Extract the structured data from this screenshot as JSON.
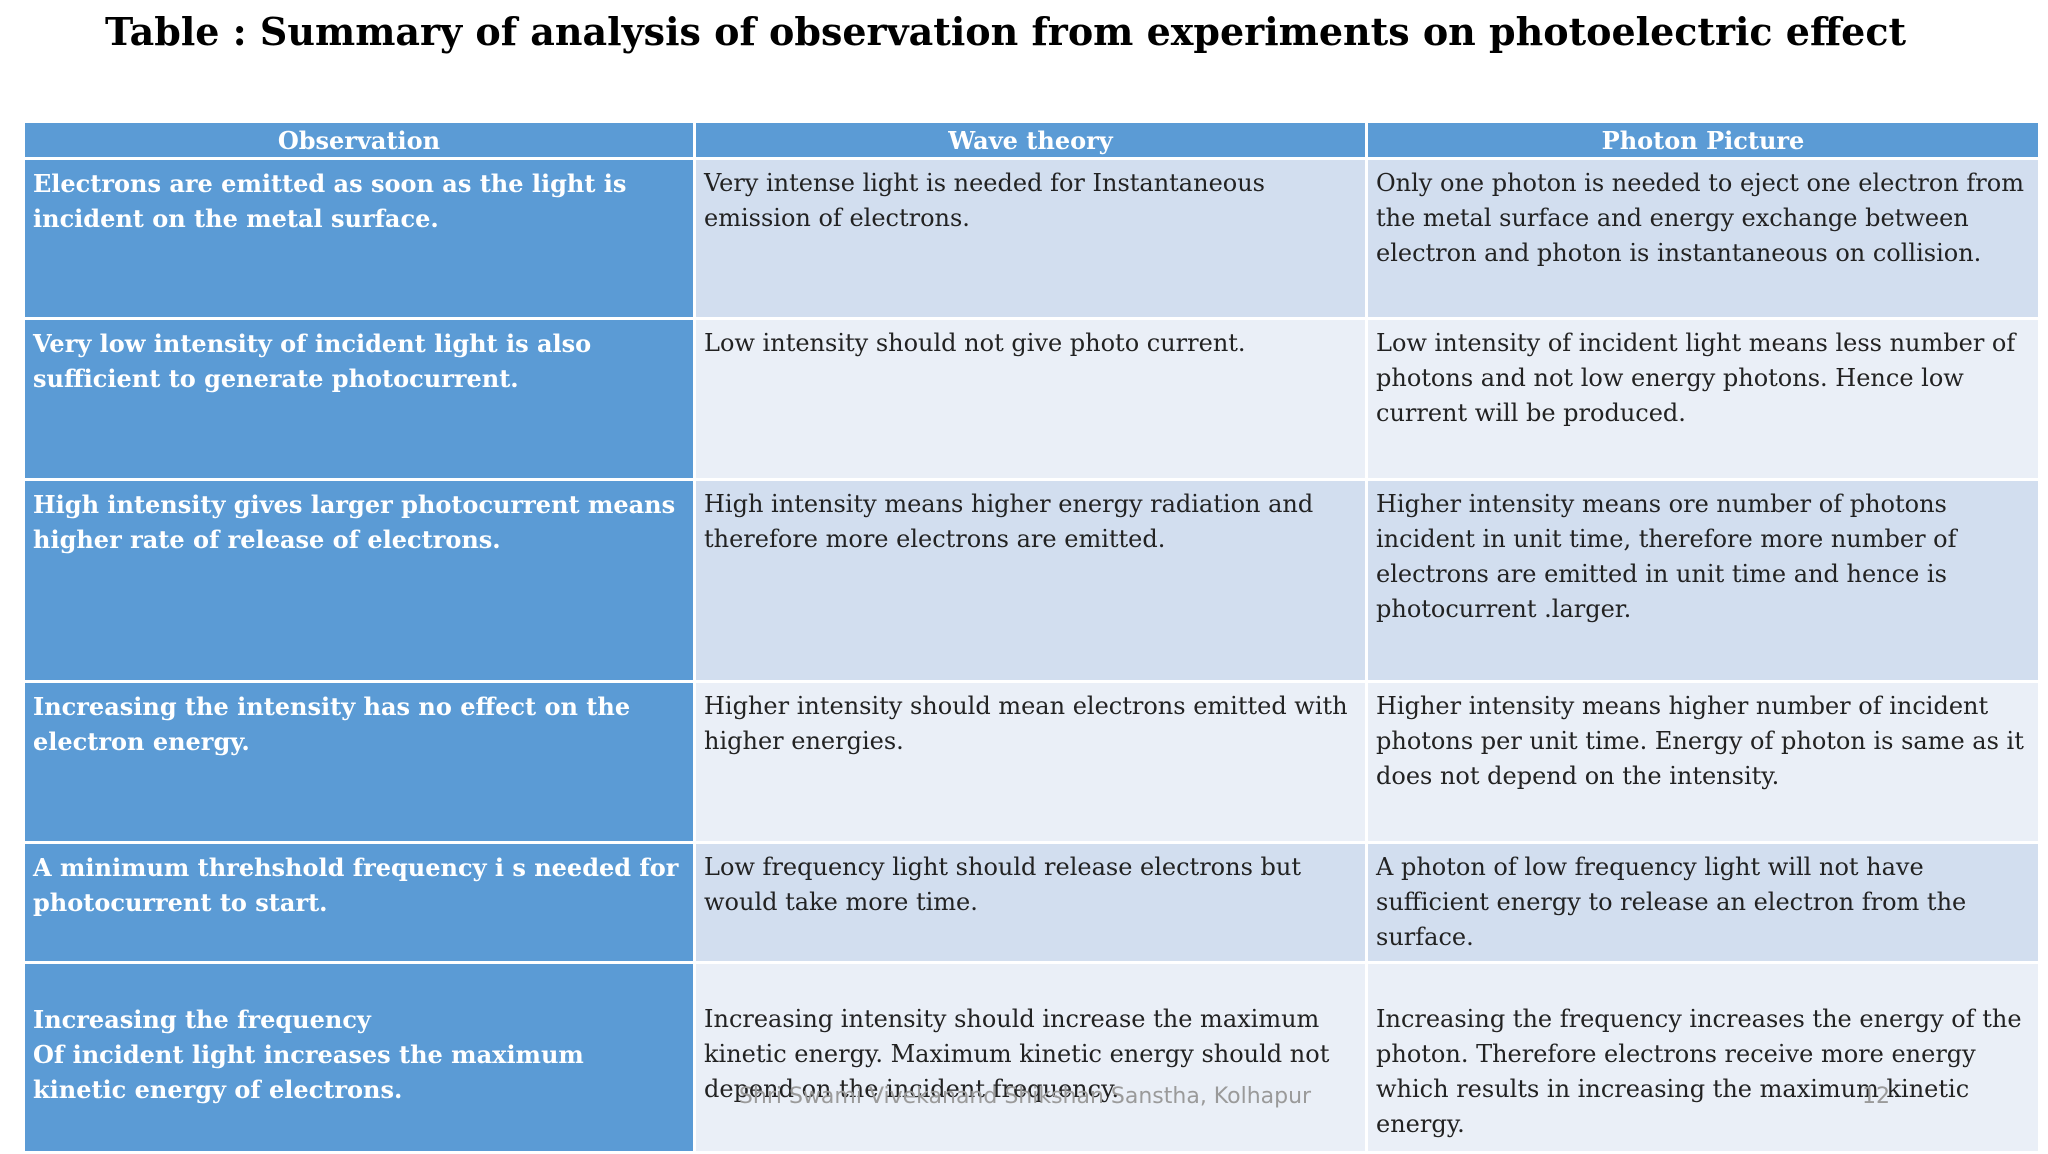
{
  "title": "Table : Summary of analysis of observation from experiments on photoelectric effect",
  "table": {
    "headers": [
      "Observation",
      "Wave theory",
      "Photon Picture"
    ],
    "rows": [
      {
        "observation": "Electrons are emitted as soon as the light is incident on the metal surface.",
        "wave": "Very intense light is needed for Instantaneous emission of electrons.",
        "photon": "Only one photon is needed to eject one electron from the metal surface and energy exchange between electron and photon is instantaneous on collision."
      },
      {
        "observation": "Very low intensity of incident light is also sufficient to generate photocurrent.",
        "wave": "Low intensity should not give  photo current.",
        "photon": "Low intensity of incident light means less number of photons and not low energy photons. Hence low current will be produced."
      },
      {
        "observation": "High intensity gives larger photocurrent means higher rate of release of electrons.",
        "wave": "High intensity means higher energy radiation and therefore more electrons are emitted.",
        "photon": "Higher intensity means ore number of photons incident in unit time, therefore more number of electrons are emitted in unit time and hence  is photocurrent .larger."
      },
      {
        "observation": " Increasing the  intensity  has no effect on the electron energy.",
        "wave": "Higher intensity should mean electrons emitted with higher energies.",
        "photon": "Higher intensity means higher number of incident photons per unit time. Energy of photon is same as it does not depend on the  intensity."
      },
      {
        "observation": "A minimum  threhshold  frequency  i s needed for photocurrent to start.",
        "wave": "Low frequency light should release electrons but would take more  time.",
        "photon": "A photon of low frequency light will not have sufficient energy to release an electron from the surface."
      },
      {
        "observation": "Increasing the frequency\nOf incident light increases the maximum kinetic energy of electrons.",
        "wave": "Increasing intensity should increase the maximum kinetic energy. Maximum kinetic energy should not depend on the incident frequency.",
        "photon": "Increasing the frequency increases the energy of the photon. Therefore electrons receive more energy which results in increasing the maximum kinetic energy."
      }
    ]
  },
  "footer": "Shri Swami Vivekanand Shikshan Sanstha, Kolhapur",
  "page_number": "12",
  "colors": {
    "header_blue": "#5b9bd5",
    "row_light_1": "#d2deef",
    "row_light_2": "#eaeff7"
  }
}
